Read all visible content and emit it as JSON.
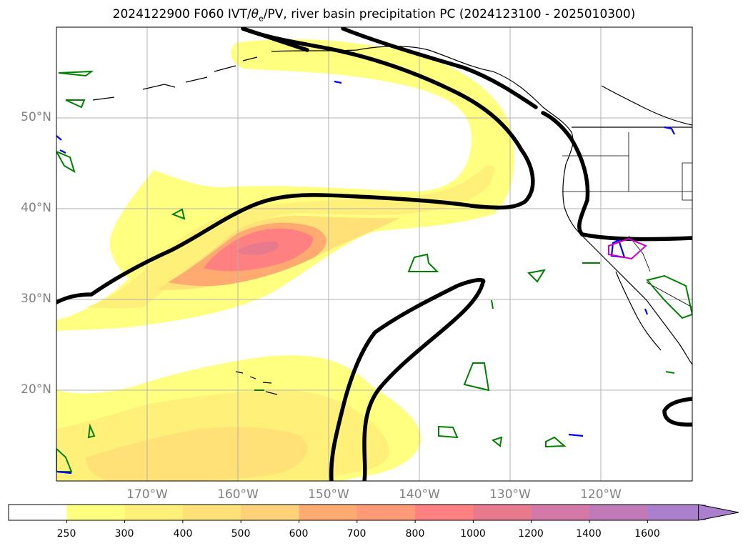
{
  "figure": {
    "title_prefix": "2024122900 F060 IVT/",
    "title_theta": "θ",
    "title_theta_sub": "e",
    "title_suffix": "/PV, river basin precipitation PC (2024123100 - 2025010300)"
  },
  "map": {
    "lat_labels": [
      "50°N",
      "40°N",
      "30°N",
      "20°N"
    ],
    "lon_labels": [
      "170°W",
      "160°W",
      "150°W",
      "140°W",
      "130°W",
      "120°W"
    ],
    "gridlines": true,
    "line_colors": {
      "pv_contour": "#000000",
      "coastline": "#000000",
      "precip_green": "#008000",
      "precip_blue": "#0000ff",
      "precip_magenta": "#cc00cc"
    }
  },
  "colorbar": {
    "ticks": [
      "250",
      "300",
      "400",
      "500",
      "600",
      "700",
      "800",
      "1000",
      "1200",
      "1400",
      "1600"
    ],
    "colors": [
      "#ffffff",
      "#ffff80",
      "#fff079",
      "#ffe178",
      "#ffd27a",
      "#ffaa70",
      "#ff9a78",
      "#ff8080",
      "#e87a8e",
      "#d478a8",
      "#c07ab8",
      "#aa80cc"
    ],
    "extend": "max"
  }
}
